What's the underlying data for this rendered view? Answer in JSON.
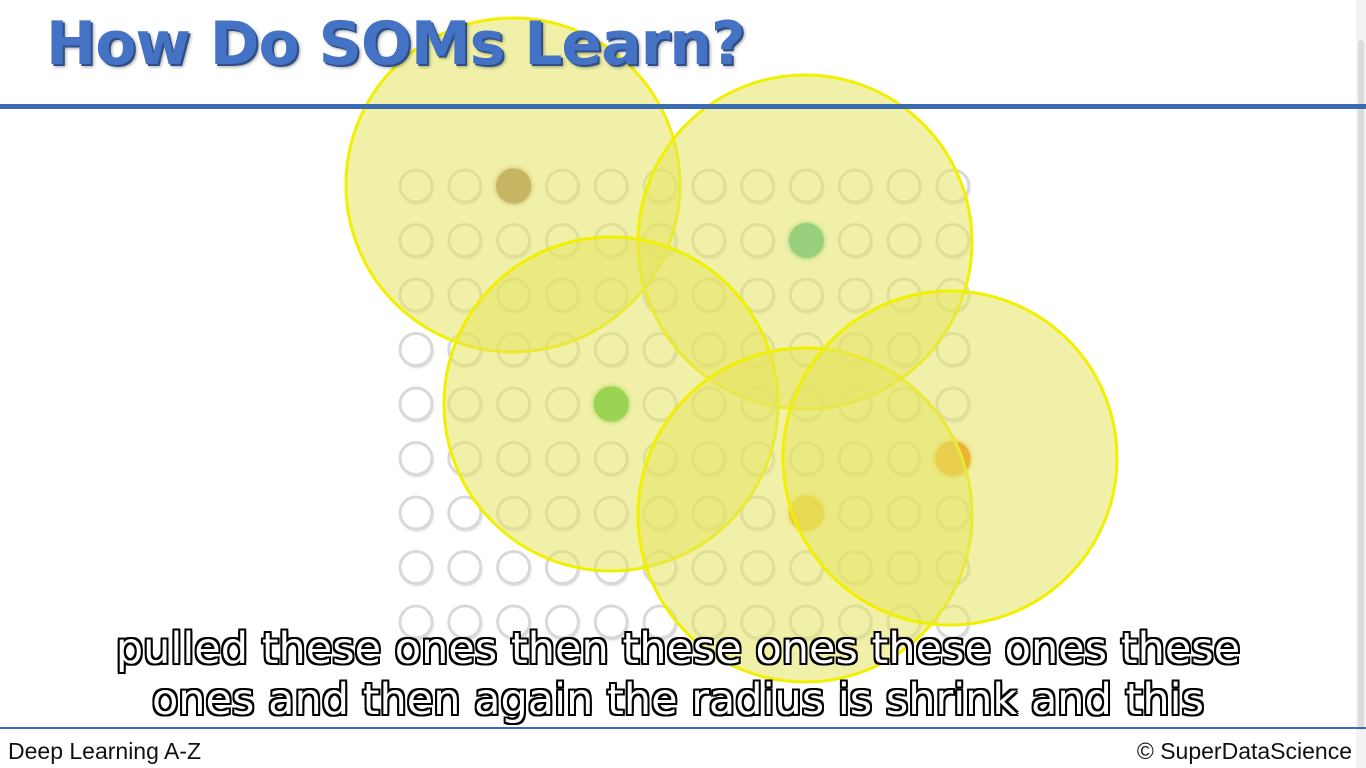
{
  "slide": {
    "title": "How Do SOMs Learn?"
  },
  "som_grid": {
    "rows": 9,
    "cols": 12,
    "node_fill": "#ffffff",
    "node_stroke": "#d9d9d9",
    "bmu_nodes": [
      {
        "name": "bmu-brown",
        "row": 0,
        "col": 2,
        "color": "#a07e66"
      },
      {
        "name": "bmu-teal",
        "row": 1,
        "col": 8,
        "color": "#3cb9a3"
      },
      {
        "name": "bmu-green",
        "row": 4,
        "col": 4,
        "color": "#3fbf3f"
      },
      {
        "name": "bmu-orange",
        "row": 5,
        "col": 11,
        "color": "#f07b05"
      },
      {
        "name": "bmu-amber",
        "row": 6,
        "col": 8,
        "color": "#f0b024"
      }
    ],
    "neighborhood_fill": "#e6e460",
    "neighborhood_stroke": "#f0f000"
  },
  "captions": {
    "line1": "pulled these ones then these ones these ones these",
    "line2": "ones and then again the radius is shrink and this"
  },
  "footer": {
    "course": "Deep Learning A-Z",
    "copyright": "© SuperDataScience"
  }
}
